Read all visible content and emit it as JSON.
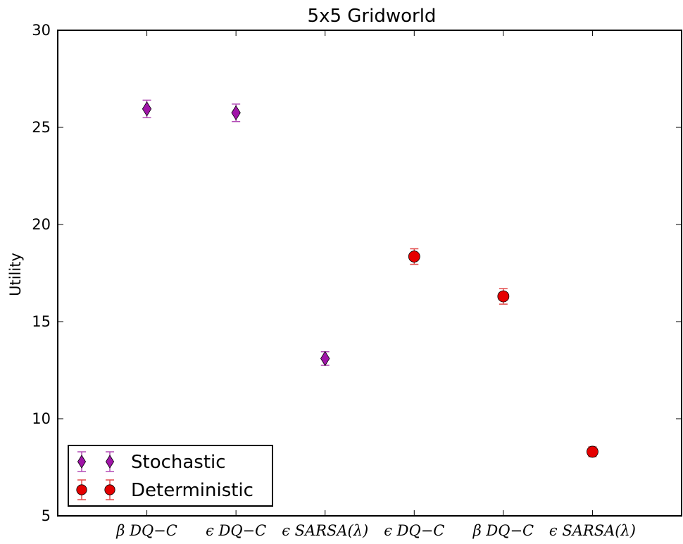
{
  "chart_data": {
    "type": "scatter",
    "title": "5x5 Gridworld",
    "xlabel": "",
    "ylabel": "Utility",
    "ylim": [
      5,
      30
    ],
    "yticks": [
      5,
      10,
      15,
      20,
      25,
      30
    ],
    "categories": [
      "β  DQ−C",
      "ϵ  DQ−C",
      "ϵ  SARSA(λ)",
      "ϵ  DQ−C",
      "β  DQ−C",
      "ϵ  SARSA(λ)"
    ],
    "grid": false,
    "legend_position": "lower-left",
    "series": [
      {
        "name": "Stochastic",
        "marker": "diamond",
        "color": "#a014a8",
        "error_color": "#b24bb6",
        "points": [
          {
            "x_index": 0,
            "y": 25.95,
            "err": 0.45
          },
          {
            "x_index": 1,
            "y": 25.75,
            "err": 0.45
          },
          {
            "x_index": 2,
            "y": 13.1,
            "err": 0.35
          }
        ]
      },
      {
        "name": "Deterministic",
        "marker": "circle",
        "color": "#e50000",
        "error_color": "#e24a4a",
        "points": [
          {
            "x_index": 3,
            "y": 18.35,
            "err": 0.4
          },
          {
            "x_index": 4,
            "y": 16.3,
            "err": 0.4
          },
          {
            "x_index": 5,
            "y": 8.3,
            "err": 0.25
          }
        ]
      }
    ]
  }
}
